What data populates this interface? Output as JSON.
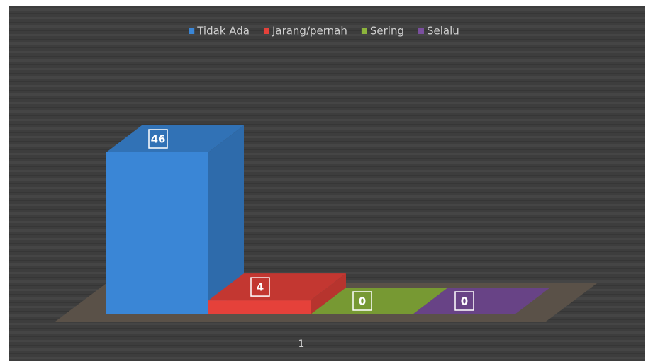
{
  "chart_data": {
    "type": "bar3d",
    "categories": [
      "1"
    ],
    "series": [
      {
        "name": "Tidak Ada",
        "color": "#3a86d6",
        "values": [
          46
        ]
      },
      {
        "name": "Jarang/pernah",
        "color": "#e5413a",
        "values": [
          4
        ]
      },
      {
        "name": "Sering",
        "color": "#8cb43c",
        "values": [
          0
        ]
      },
      {
        "name": "Selalu",
        "color": "#7a4f9e",
        "values": [
          0
        ]
      }
    ],
    "legend": "top"
  }
}
